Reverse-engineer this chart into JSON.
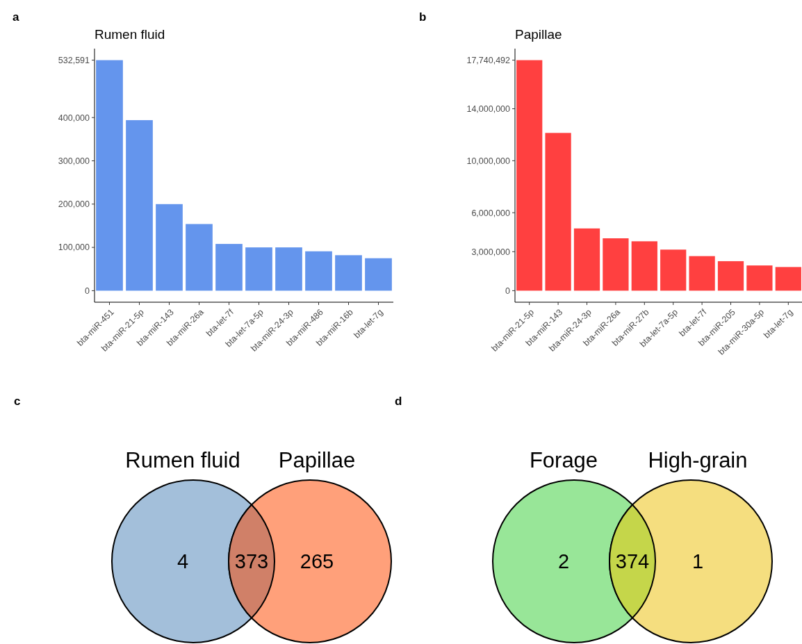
{
  "chart_data": [
    {
      "type": "bar",
      "title": "Rumen fluid",
      "annotations": [
        "a"
      ],
      "categories": [
        "bta-miR-451",
        "bta-miR-21-5p",
        "bta-miR-143",
        "bta-miR-26a",
        "bta-let-7f",
        "bta-let-7a-5p",
        "bta-miR-24-3p",
        "bta-miR-486",
        "bta-miR-16b",
        "bta-let-7g"
      ],
      "values": [
        532591,
        394000,
        200000,
        154000,
        108000,
        100000,
        100000,
        91000,
        82000,
        75000
      ],
      "color": "#6495ed",
      "ylim": [
        -26600,
        559200
      ],
      "yticks": [
        0,
        {
          "value": 100000,
          "label": "100,000"
        },
        {
          "value": 200000,
          "label": "200,000"
        },
        {
          "value": 300000,
          "label": "300,000"
        },
        {
          "value": 400000,
          "label": "400,000"
        },
        {
          "value": 532591,
          "label": "532,591"
        }
      ],
      "grid": false
    },
    {
      "type": "bar",
      "title": "Papillae",
      "annotations": [
        "b"
      ],
      "categories": [
        "bta-miR-21-5p",
        "bta-miR-143",
        "bta-miR-24-3p",
        "bta-miR-26a",
        "bta-miR-27b",
        "bta-let-7a-5p",
        "bta-let-7f",
        "bta-miR-205",
        "bta-miR-30a-5p",
        "bta-let-7g"
      ],
      "values": [
        17740492,
        12140000,
        4790000,
        4030000,
        3800000,
        3160000,
        2660000,
        2270000,
        1940000,
        1820000
      ],
      "color": "#ff4040",
      "ylim": [
        -887000,
        18627000
      ],
      "yticks": [
        0,
        {
          "value": 3000000,
          "label": "3,000,000"
        },
        {
          "value": 6000000,
          "label": "6,000,000"
        },
        {
          "value": 10000000,
          "label": "10,000,000"
        },
        {
          "value": 14000000,
          "label": "14,000,000"
        },
        {
          "value": 17740492,
          "label": "17,740,492"
        }
      ],
      "grid": false
    },
    {
      "type": "other",
      "annotations": [
        "c"
      ],
      "categories": [
        "Rumen fluid",
        null,
        "Papillae"
      ],
      "values": [
        4,
        373,
        265
      ],
      "colors": [
        "#a3bfda",
        "#d08068",
        "#ffa07a"
      ],
      "data_labels": true
    },
    {
      "type": "other",
      "annotations": [
        "d"
      ],
      "categories": [
        "Forage",
        null,
        "High-grain"
      ],
      "values": [
        2,
        374,
        1
      ],
      "colors": [
        "#98e698",
        "#c5d64a",
        "#f5de7f"
      ],
      "data_labels": true
    }
  ]
}
